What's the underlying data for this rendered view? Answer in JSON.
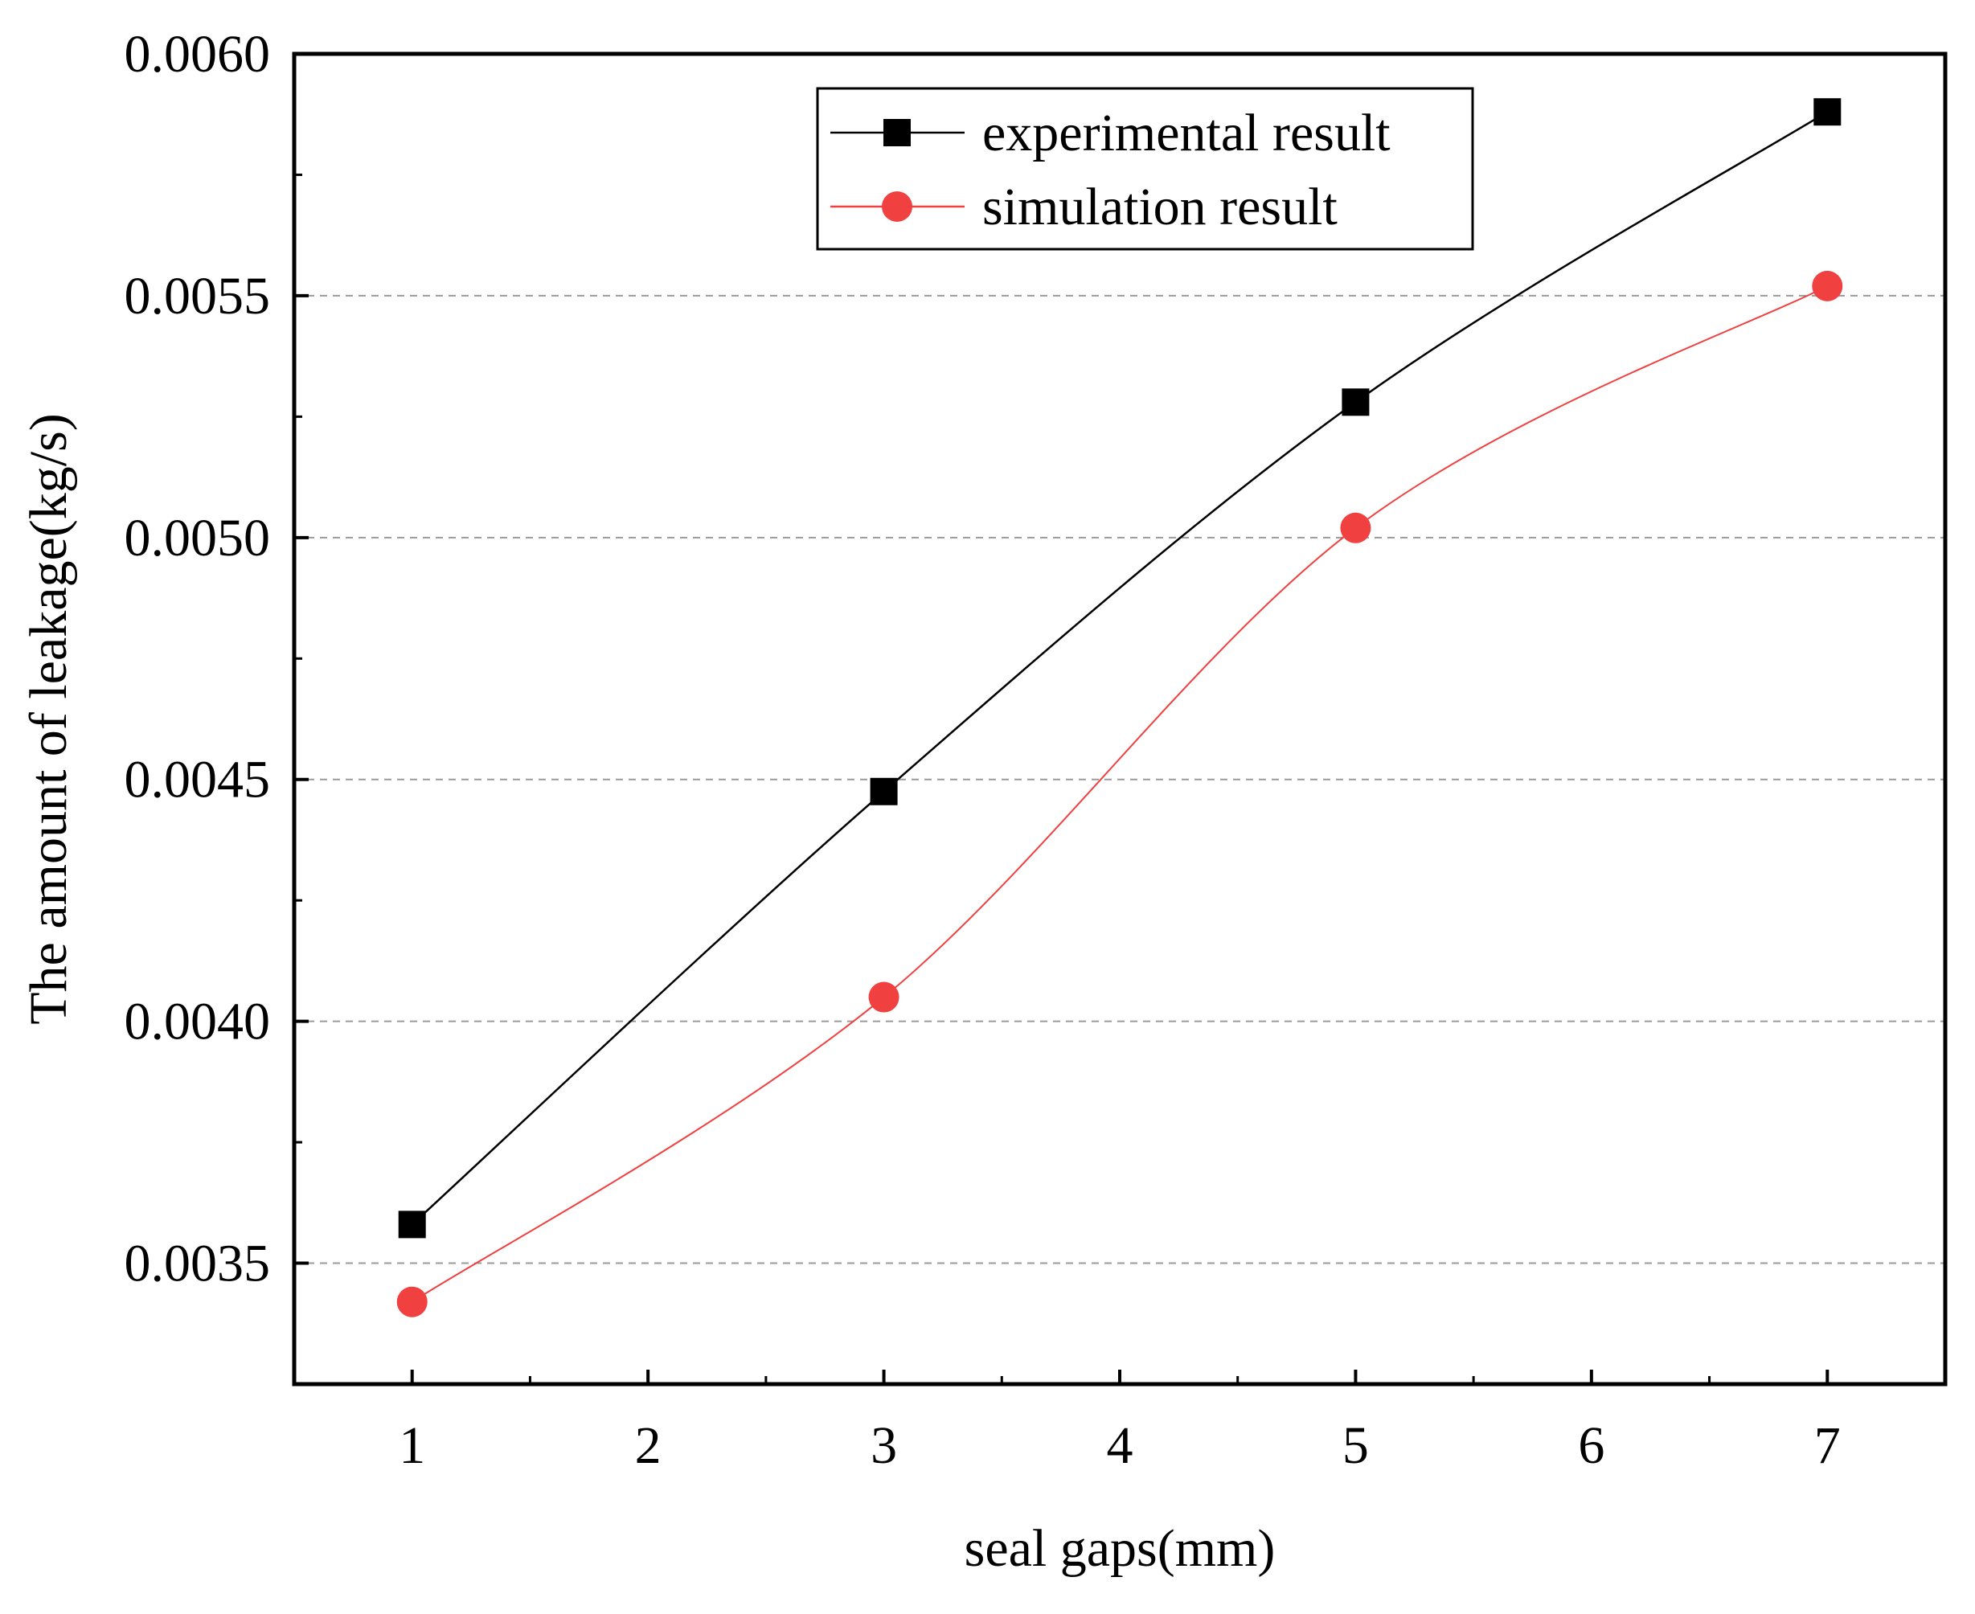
{
  "chart_data": {
    "type": "line",
    "title": "",
    "xlabel": "seal gaps(mm)",
    "ylabel": "The amount of leakage(kg/s)",
    "xlim": [
      0.5,
      7.5
    ],
    "ylim": [
      0.00325,
      0.006
    ],
    "xticks": [
      1,
      2,
      3,
      4,
      5,
      6,
      7
    ],
    "xtick_labels": [
      "1",
      "2",
      "3",
      "4",
      "5",
      "6",
      "7"
    ],
    "yticks": [
      0.0035,
      0.004,
      0.0045,
      0.005,
      0.0055,
      0.006
    ],
    "ytick_labels": [
      "0.0035",
      "0.0040",
      "0.0045",
      "0.0050",
      "0.0055",
      "0.0060"
    ],
    "grid": "horizontal dashed",
    "legend_position": "top-center",
    "series": [
      {
        "name": "experimental result",
        "color": "#000000",
        "marker": "square",
        "x": [
          1,
          3,
          5,
          7
        ],
        "values": [
          0.00358,
          0.004475,
          0.00528,
          0.00588
        ]
      },
      {
        "name": "simulation result",
        "color": "#f04040",
        "marker": "circle",
        "x": [
          1,
          3,
          5,
          7
        ],
        "values": [
          0.00342,
          0.00405,
          0.00502,
          0.00552
        ]
      }
    ]
  }
}
